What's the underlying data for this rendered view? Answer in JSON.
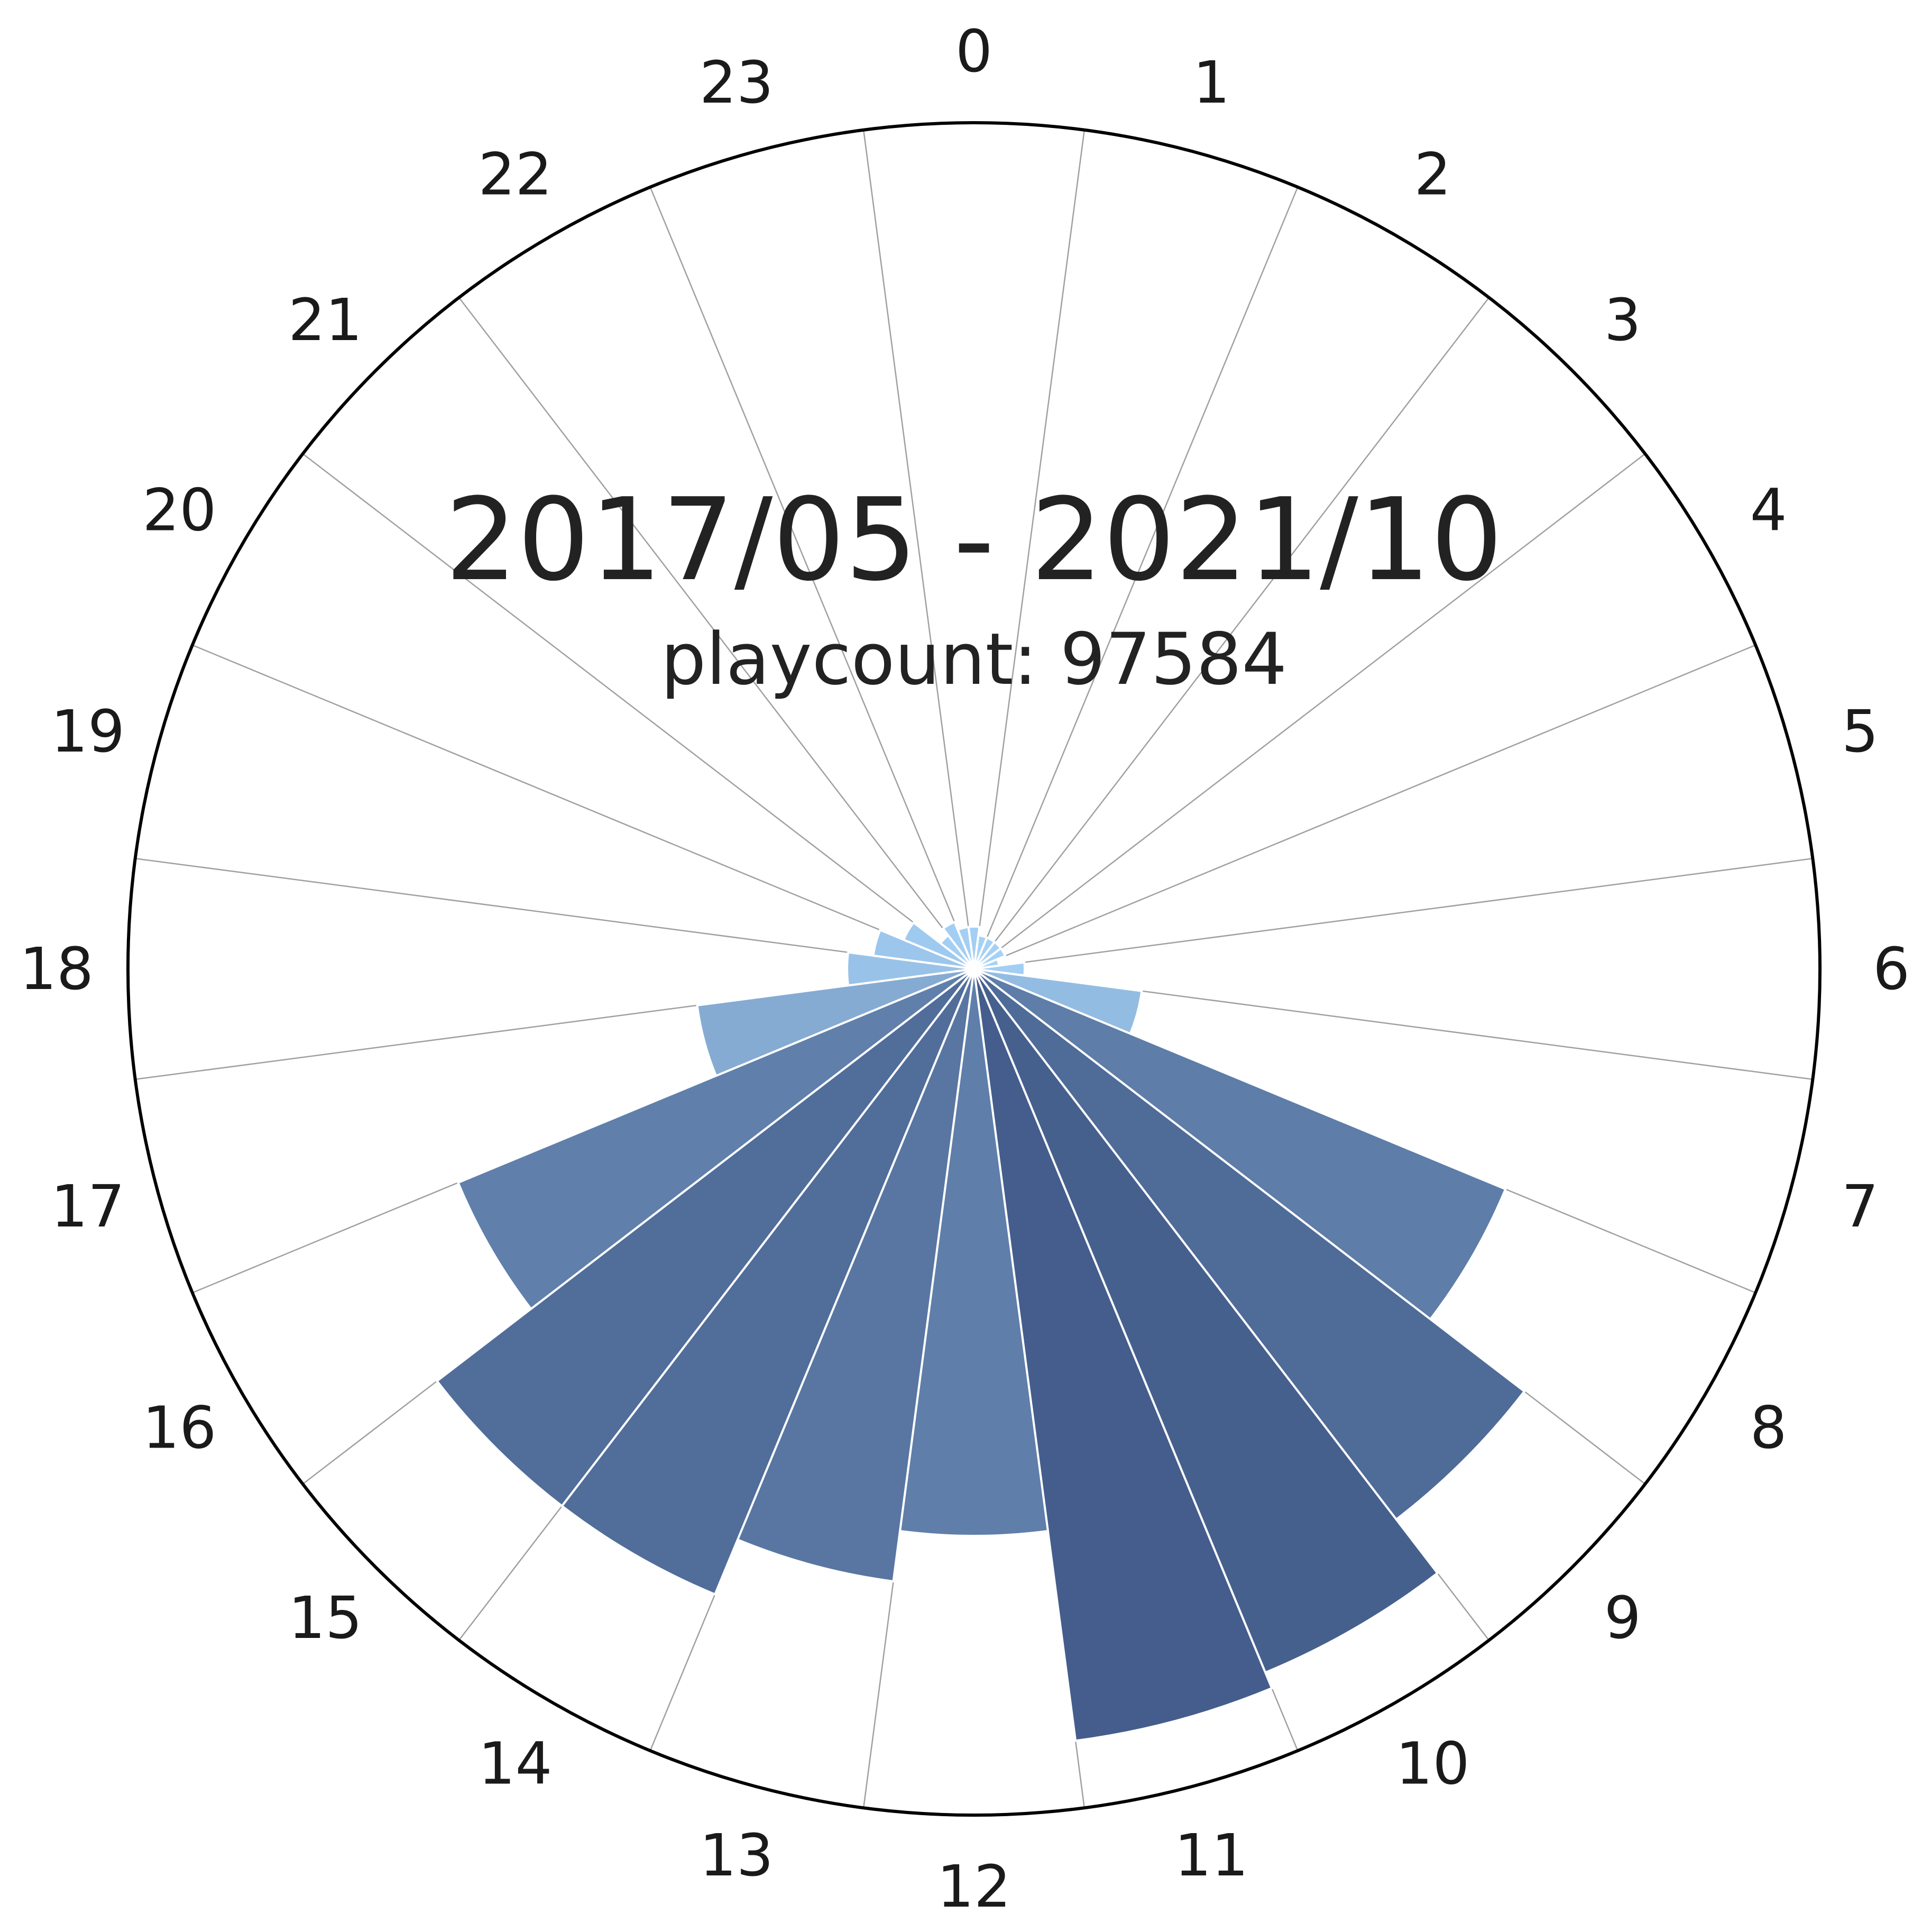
{
  "chart_data": {
    "type": "bar",
    "subtype": "polar-bar",
    "title": "2017/05 - 2021/10",
    "subtitle": "playcount: 97584",
    "categories": [
      "0",
      "1",
      "2",
      "3",
      "4",
      "5",
      "6",
      "7",
      "8",
      "9",
      "10",
      "11",
      "12",
      "13",
      "14",
      "15",
      "16",
      "17",
      "18",
      "19",
      "20",
      "21",
      "22",
      "23"
    ],
    "values": [
      0.05,
      0.04,
      0.04,
      0.04,
      0.04,
      0.03,
      0.06,
      0.2,
      0.68,
      0.82,
      0.9,
      0.92,
      0.67,
      0.73,
      0.8,
      0.8,
      0.66,
      0.33,
      0.15,
      0.12,
      0.09,
      0.05,
      0.06,
      0.05
    ],
    "ylim": [
      0,
      1
    ],
    "grid": true,
    "legend": "none",
    "colors": {
      "low": "#a9d6fa",
      "high": "#3b5382",
      "gridline": "#a0a0a0",
      "outline": "#000000",
      "bar_edge": "#ffffff"
    }
  }
}
